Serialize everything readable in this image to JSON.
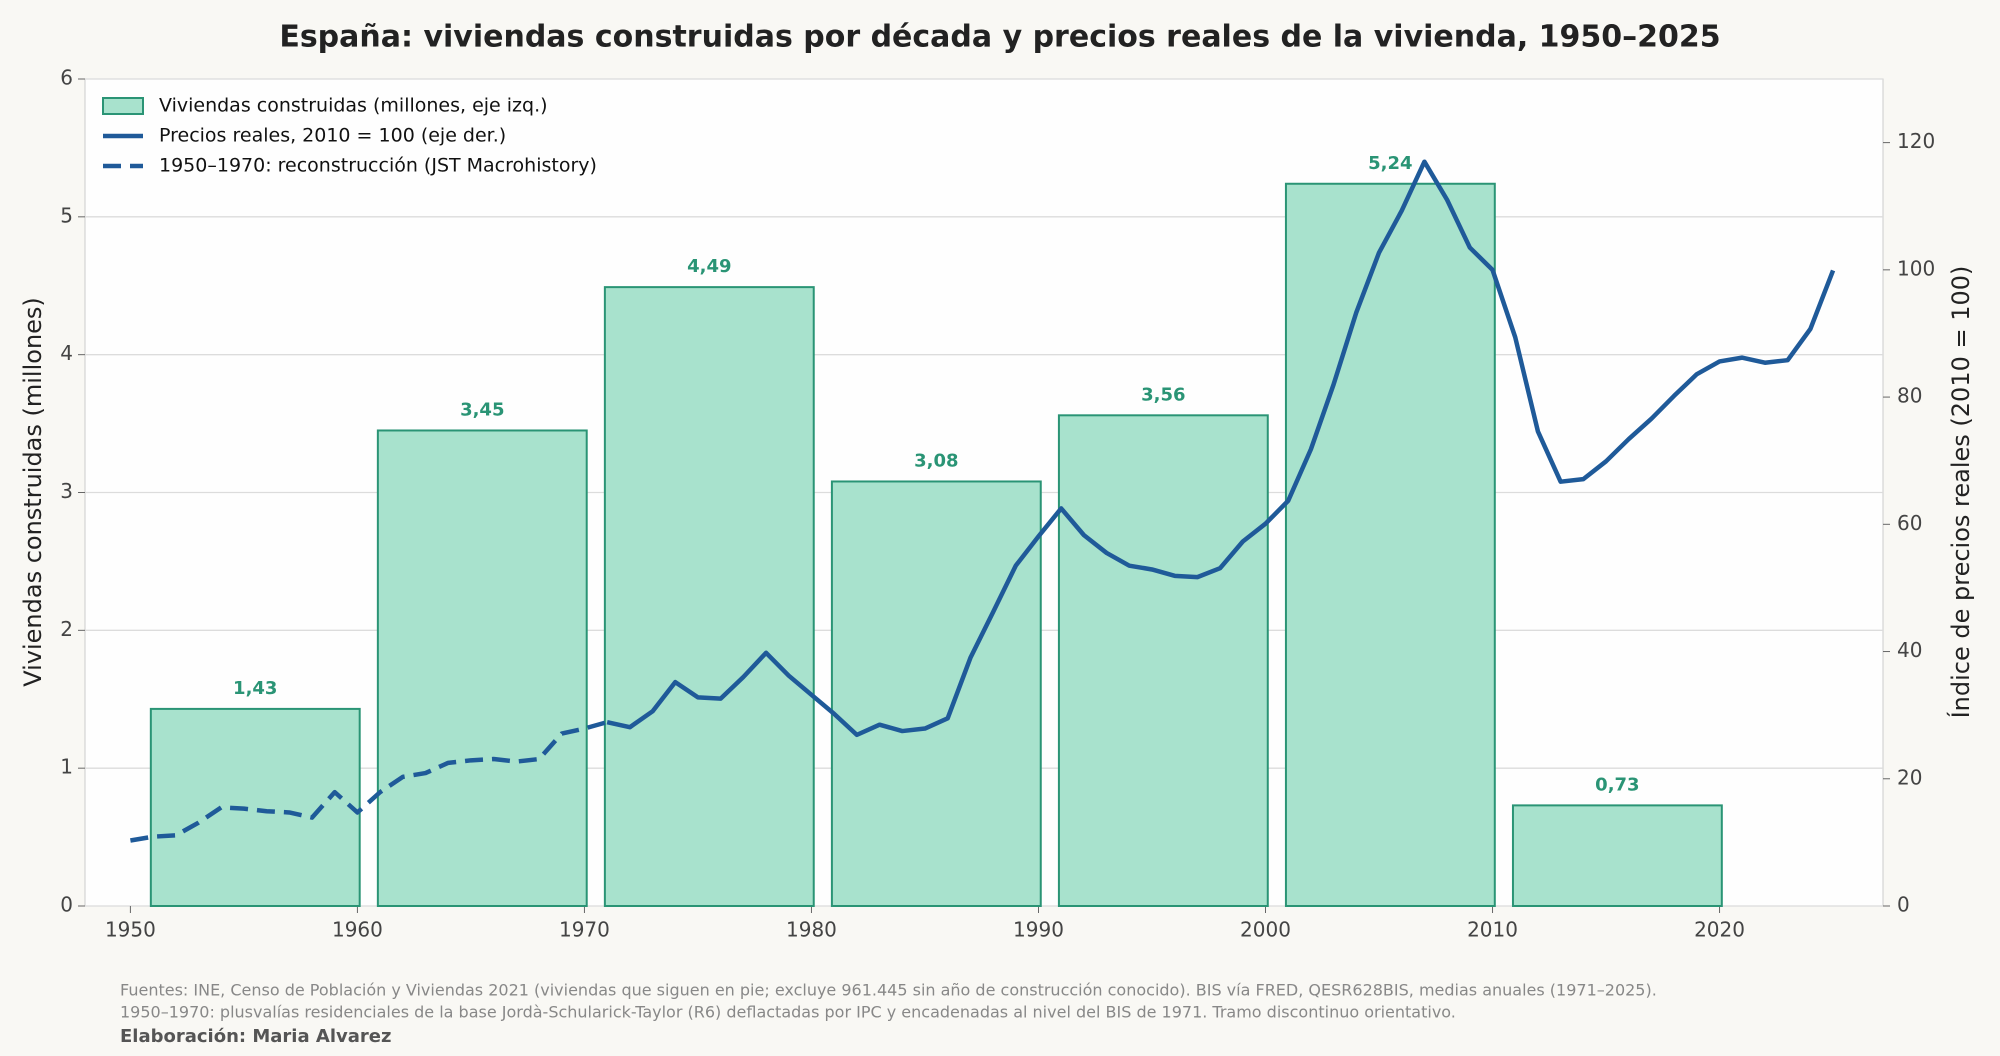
{
  "chart_data": {
    "type": "combo",
    "title": "España: viviendas construidas por década y precios reales de la vivienda, 1950–2025",
    "y_label": "Viviendas construidas (millones)",
    "y2_label": "Índice de precios reales (2010 = 100)",
    "xlim": [
      1948,
      2027.2
    ],
    "xticks": [
      1950,
      1960,
      1970,
      1980,
      1990,
      2000,
      2010,
      2020
    ],
    "ylim": [
      0,
      6
    ],
    "yticks": [
      0,
      1,
      2,
      3,
      4,
      5,
      6
    ],
    "y2lim": [
      0,
      130
    ],
    "y2ticks": [
      0,
      20,
      40,
      60,
      80,
      100,
      120
    ],
    "grid": true,
    "legend": "upper left",
    "series": [
      {
        "name": "Viviendas construidas (millones, eje izq.)",
        "type": "bar",
        "color": "#a8e2cd",
        "edge_color": "#2a9475",
        "x": [
          1955.5,
          1965.5,
          1975.5,
          1985.5,
          1995.5,
          2005.5,
          2015.5
        ],
        "values": [
          1.43,
          3.45,
          4.49,
          3.08,
          3.56,
          5.24,
          0.73
        ],
        "value_labels": [
          "1,43",
          "3,45",
          "4,49",
          "3,08",
          "3,56",
          "5,24",
          "0,73"
        ]
      },
      {
        "name": "Precios reales, 2010 = 100 (eje der.)",
        "type": "line",
        "axis": "y2",
        "color": "#1f5a99",
        "dashed": false,
        "x": [
          1971,
          1972,
          1973,
          1974,
          1975,
          1976,
          1977,
          1978,
          1979,
          1980,
          1981,
          1982,
          1983,
          1984,
          1985,
          1986,
          1987,
          1988,
          1989,
          1990,
          1991,
          1992,
          1993,
          1994,
          1995,
          1996,
          1997,
          1998,
          1999,
          2000,
          2001,
          2002,
          2003,
          2004,
          2005,
          2006,
          2007,
          2008,
          2009,
          2010,
          2011,
          2012,
          2013,
          2014,
          2015,
          2016,
          2017,
          2018,
          2019,
          2020,
          2021,
          2022,
          2023,
          2024,
          2025
        ],
        "values": [
          28.9,
          28.1,
          30.6,
          35.2,
          32.8,
          32.6,
          36,
          39.8,
          36.2,
          33.2,
          30.2,
          26.9,
          28.5,
          27.5,
          27.9,
          29.5,
          39,
          46.2,
          53.5,
          58.1,
          62.5,
          58.3,
          55.5,
          53.5,
          52.9,
          51.9,
          51.7,
          53.1,
          57.3,
          60.1,
          63.7,
          71.8,
          82,
          93.3,
          102.7,
          109.3,
          117,
          111,
          103.5,
          100,
          89.4,
          74.6,
          66.7,
          67.1,
          69.9,
          73.4,
          76.6,
          80.2,
          83.6,
          85.6,
          86.2,
          85.4,
          85.8,
          90.7,
          99.9
        ]
      },
      {
        "name": "1950–1970: reconstrucción (JST Macrohistory)",
        "type": "line",
        "axis": "y2",
        "color": "#1f5a99",
        "dashed": true,
        "x": [
          1950,
          1951,
          1952,
          1953,
          1954,
          1955,
          1956,
          1957,
          1958,
          1959,
          1960,
          1961,
          1962,
          1963,
          1964,
          1965,
          1966,
          1967,
          1968,
          1969,
          1970,
          1971
        ],
        "values": [
          10.3,
          10.9,
          11.1,
          13.1,
          15.5,
          15.3,
          14.9,
          14.7,
          13.9,
          17.9,
          14.7,
          17.9,
          20.3,
          20.9,
          22.5,
          22.9,
          23.1,
          22.7,
          23.1,
          27.1,
          27.9,
          28.9
        ]
      }
    ]
  },
  "footer": {
    "sources_1": "Fuentes: INE, Censo de Población y Viviendas 2021 (viviendas que siguen en pie; excluye 961.445 sin año de construcción conocido). BIS vía FRED, QESR628BIS, medias anuales (1971–2025).",
    "sources_2": "1950–1970: plusvalías residenciales de la base Jordà-Schularick-Taylor (R6) deflactadas por IPC y encadenadas al nivel del BIS de 1971. Tramo discontinuo orientativo.",
    "credit": "Elaboración: Maria Alvarez"
  }
}
